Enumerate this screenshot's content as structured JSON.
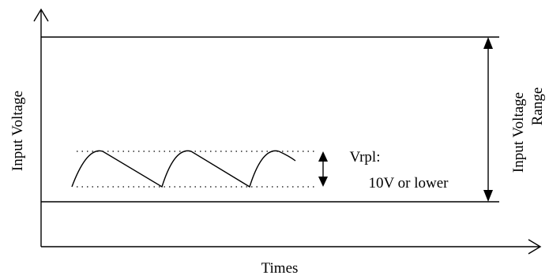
{
  "diagram": {
    "x_axis_label": "Times",
    "y_axis_label": "Input Voltage",
    "range_label_line1": "Input Voltage",
    "range_label_line2": "Range",
    "ripple_label_line1": "Vrpl:",
    "ripple_label_line2": "10V or lower",
    "line_color": "#000000",
    "background_color": "#ffffff"
  }
}
